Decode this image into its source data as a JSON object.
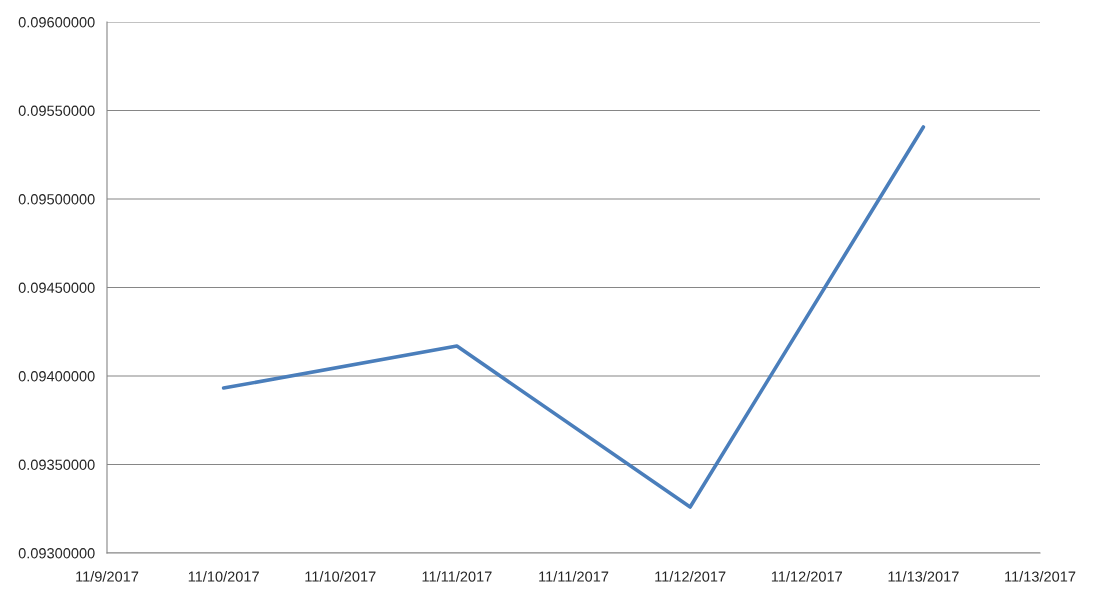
{
  "chart_data": {
    "type": "line",
    "x": [
      "2017-11-10",
      "2017-11-11",
      "2017-11-12",
      "2017-11-13"
    ],
    "series": [
      {
        "color": "#4a7ebb",
        "values": [
          0.093932,
          0.094169,
          0.09326,
          0.095407
        ]
      }
    ],
    "ylim": [
      0.093,
      0.096
    ],
    "yticks": [
      {
        "value": 0.093,
        "label": "0.09300000"
      },
      {
        "value": 0.0935,
        "label": "0.09350000"
      },
      {
        "value": 0.094,
        "label": "0.09400000"
      },
      {
        "value": 0.0945,
        "label": "0.09450000"
      },
      {
        "value": 0.095,
        "label": "0.09500000"
      },
      {
        "value": 0.0955,
        "label": "0.09550000"
      },
      {
        "value": 0.096,
        "label": "0.09600000"
      }
    ],
    "xlim": [
      "2017-11-09T12:00",
      "2017-11-13T12:00"
    ],
    "xticks": [
      {
        "value": "2017-11-09T12:00",
        "label": "11/9/2017"
      },
      {
        "value": "2017-11-10",
        "label": "11/10/2017"
      },
      {
        "value": "2017-11-10T12:00",
        "label": "11/10/2017"
      },
      {
        "value": "2017-11-11",
        "label": "11/11/2017"
      },
      {
        "value": "2017-11-11T12:00",
        "label": "11/11/2017"
      },
      {
        "value": "2017-11-12",
        "label": "11/12/2017"
      },
      {
        "value": "2017-11-12T12:00",
        "label": "11/12/2017"
      },
      {
        "value": "2017-11-13",
        "label": "11/13/2017"
      },
      {
        "value": "2017-11-13T12:00",
        "label": "11/13/2017"
      }
    ],
    "grid": "y",
    "marker": "none",
    "line_style": "solid"
  }
}
